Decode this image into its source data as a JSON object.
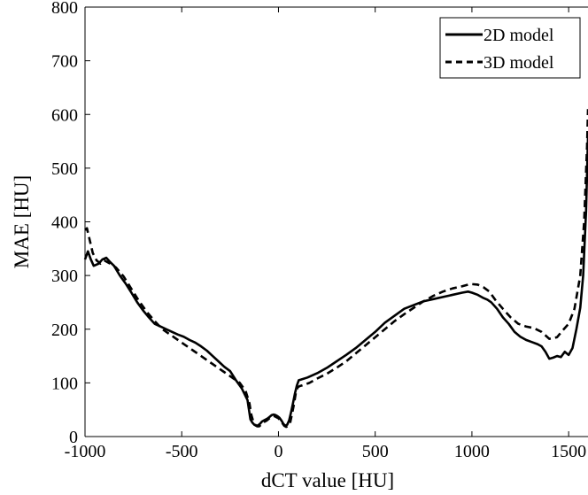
{
  "chart_data": {
    "type": "line",
    "title": "",
    "xlabel": "dCT value [HU]",
    "ylabel": "MAE [HU]",
    "xlim": [
      -1000,
      1600
    ],
    "ylim": [
      0,
      800
    ],
    "xticks": [
      -1000,
      -500,
      0,
      500,
      1000,
      1500
    ],
    "yticks": [
      0,
      100,
      200,
      300,
      400,
      500,
      600,
      700,
      800
    ],
    "xtick_labels": [
      "-1000",
      "-500",
      "0",
      "500",
      "1000",
      "1500"
    ],
    "ytick_labels": [
      "0",
      "100",
      "200",
      "300",
      "400",
      "500",
      "600",
      "700",
      "800"
    ],
    "grid": false,
    "legend_position": "top-right",
    "series": [
      {
        "name": "2D model",
        "style": "solid",
        "color": "#000000",
        "x": [
          -1000,
          -985,
          -970,
          -955,
          -930,
          -910,
          -890,
          -870,
          -850,
          -820,
          -790,
          -760,
          -730,
          -700,
          -670,
          -640,
          -610,
          -580,
          -550,
          -520,
          -490,
          -460,
          -430,
          -400,
          -370,
          -340,
          -310,
          -280,
          -250,
          -220,
          -190,
          -160,
          -145,
          -135,
          -125,
          -115,
          -105,
          -95,
          -85,
          -75,
          -65,
          -55,
          -45,
          -35,
          -25,
          -15,
          -5,
          5,
          15,
          25,
          35,
          45,
          55,
          65,
          75,
          85,
          95,
          105,
          115,
          150,
          200,
          250,
          300,
          350,
          400,
          450,
          500,
          550,
          600,
          650,
          700,
          750,
          800,
          850,
          900,
          950,
          980,
          1000,
          1030,
          1060,
          1080,
          1100,
          1130,
          1160,
          1190,
          1220,
          1250,
          1280,
          1310,
          1340,
          1360,
          1380,
          1400,
          1420,
          1440,
          1460,
          1480,
          1500,
          1520,
          1540,
          1560,
          1575,
          1590,
          1600
        ],
        "y": [
          330,
          345,
          330,
          318,
          322,
          330,
          333,
          325,
          318,
          300,
          285,
          268,
          250,
          235,
          222,
          210,
          205,
          200,
          195,
          190,
          186,
          180,
          175,
          168,
          160,
          150,
          140,
          130,
          122,
          105,
          90,
          68,
          32,
          26,
          22,
          20,
          21,
          24,
          28,
          30,
          32,
          34,
          37,
          40,
          41,
          40,
          38,
          35,
          30,
          24,
          20,
          22,
          30,
          45,
          62,
          80,
          95,
          105,
          106,
          110,
          118,
          128,
          140,
          152,
          165,
          180,
          195,
          212,
          225,
          238,
          245,
          252,
          256,
          260,
          264,
          268,
          270,
          268,
          264,
          258,
          255,
          250,
          238,
          222,
          210,
          195,
          186,
          180,
          176,
          172,
          168,
          158,
          145,
          147,
          150,
          148,
          158,
          152,
          165,
          200,
          240,
          300,
          420,
          560
        ]
      },
      {
        "name": "3D model",
        "style": "dashed",
        "color": "#000000",
        "x": [
          -1000,
          -990,
          -975,
          -960,
          -940,
          -920,
          -900,
          -870,
          -840,
          -800,
          -760,
          -720,
          -680,
          -640,
          -600,
          -560,
          -520,
          -480,
          -440,
          -400,
          -360,
          -320,
          -280,
          -240,
          -200,
          -170,
          -150,
          -140,
          -130,
          -120,
          -110,
          -100,
          -90,
          -80,
          -70,
          -60,
          -50,
          -40,
          -30,
          -20,
          -10,
          0,
          10,
          20,
          30,
          40,
          50,
          60,
          70,
          80,
          90,
          100,
          110,
          120,
          160,
          200,
          250,
          300,
          350,
          400,
          450,
          500,
          550,
          600,
          650,
          700,
          750,
          800,
          850,
          900,
          950,
          980,
          1000,
          1030,
          1060,
          1090,
          1120,
          1160,
          1200,
          1240,
          1280,
          1320,
          1360,
          1400,
          1440,
          1470,
          1500,
          1530,
          1560,
          1580,
          1595,
          1600
        ],
        "y": [
          385,
          388,
          365,
          342,
          328,
          322,
          328,
          322,
          315,
          298,
          275,
          252,
          232,
          215,
          200,
          190,
          180,
          170,
          160,
          150,
          140,
          130,
          120,
          110,
          100,
          85,
          62,
          40,
          28,
          22,
          19,
          19,
          22,
          26,
          28,
          30,
          33,
          36,
          38,
          38,
          36,
          34,
          30,
          25,
          20,
          18,
          20,
          25,
          42,
          60,
          82,
          92,
          94,
          95,
          100,
          108,
          117,
          128,
          140,
          155,
          170,
          185,
          200,
          215,
          228,
          240,
          252,
          262,
          270,
          276,
          280,
          283,
          284,
          283,
          278,
          270,
          255,
          238,
          222,
          210,
          205,
          202,
          195,
          182,
          185,
          198,
          210,
          238,
          300,
          400,
          540,
          610
        ]
      }
    ]
  }
}
